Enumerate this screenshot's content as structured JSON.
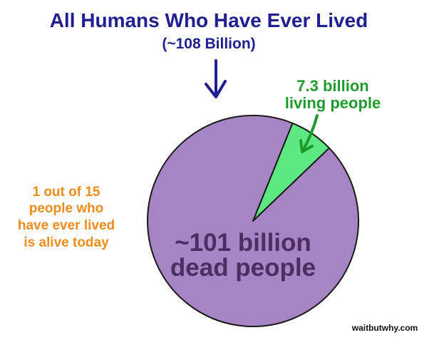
{
  "chart_data": {
    "type": "pie",
    "title": "All Humans Who Have Ever Lived",
    "subtitle": "(~108 Billion)",
    "slices": [
      {
        "value": 101,
        "label_lines": [
          "~101 billion",
          "dead people"
        ],
        "color": "#a784c3"
      },
      {
        "value": 7.3,
        "label_lines": [
          "7.3 billion",
          "living people"
        ],
        "color": "#5ee882"
      }
    ],
    "annotation_lines": [
      "1 out of 15",
      "people who",
      "have ever lived",
      "is alive today"
    ],
    "source": "waitbutwhy.com"
  },
  "colors": {
    "title": "#1f1f93",
    "living_label": "#1e9c2b",
    "dead_label": "#4a2f63",
    "annotation": "#f08c1a",
    "outline": "#1a1a1a",
    "source": "#111111"
  }
}
